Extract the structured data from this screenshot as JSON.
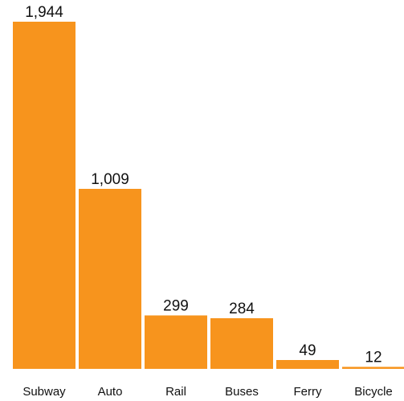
{
  "chart_data": {
    "type": "bar",
    "categories": [
      "Subway",
      "Auto",
      "Rail",
      "Buses",
      "Ferry",
      "Bicycle"
    ],
    "values": [
      1944,
      1009,
      299,
      284,
      49,
      12
    ],
    "value_labels": [
      "1,944",
      "1,009",
      "299",
      "284",
      "49",
      "12"
    ],
    "title": "",
    "xlabel": "",
    "ylabel": "",
    "ylim": [
      0,
      1944
    ],
    "grid": false,
    "legend": "none",
    "bar_color": "#F7941D"
  }
}
